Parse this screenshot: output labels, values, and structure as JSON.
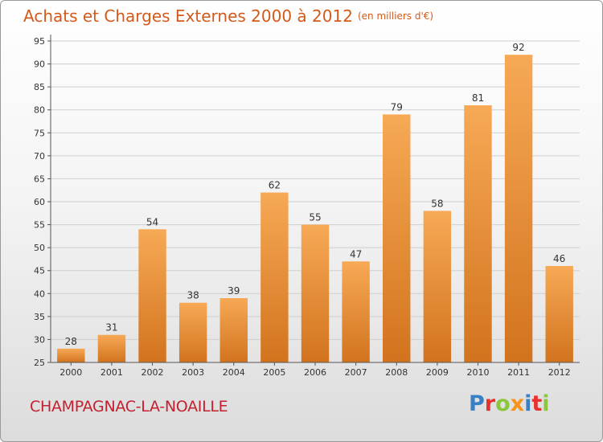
{
  "header": {
    "title": "Achats et Charges Externes 2000 à 2012",
    "subtitle": "(en milliers d'€)"
  },
  "footer": {
    "commune": "CHAMPAGNAC-LA-NOAILLE",
    "logo_text": "Proxiti",
    "logo_letter_colors": [
      "#3b7fc4",
      "#e8312f",
      "#8cc63f",
      "#f7941d",
      "#3b7fc4",
      "#e8312f",
      "#8cc63f"
    ]
  },
  "colors": {
    "title": "#d45a1a",
    "commune": "#c52030",
    "bar_light": "#f7a955",
    "bar_dark": "#d2731e",
    "grid": "#cfcfcf"
  },
  "chart_data": {
    "type": "bar",
    "categories": [
      "2000",
      "2001",
      "2002",
      "2003",
      "2004",
      "2005",
      "2006",
      "2007",
      "2008",
      "2009",
      "2010",
      "2011",
      "2012"
    ],
    "values": [
      28,
      31,
      54,
      38,
      39,
      62,
      55,
      47,
      79,
      58,
      81,
      92,
      46
    ],
    "ylim": [
      25,
      95
    ],
    "yticks": [
      25,
      30,
      35,
      40,
      45,
      50,
      55,
      60,
      65,
      70,
      75,
      80,
      85,
      90,
      95
    ],
    "grid": true,
    "data_labels": true
  }
}
